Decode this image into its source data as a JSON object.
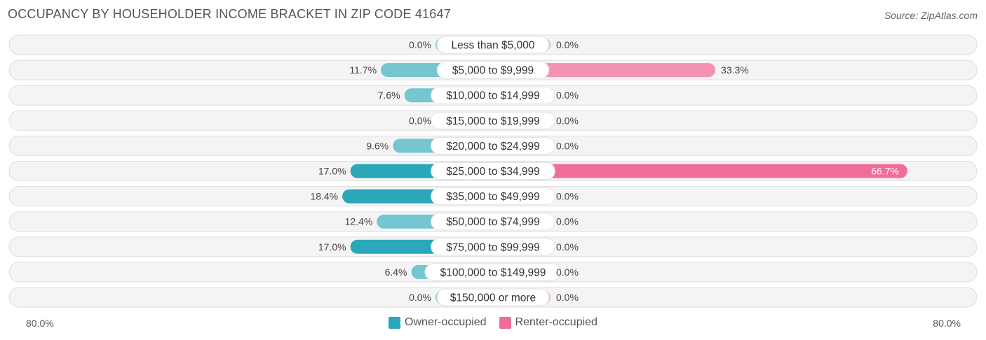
{
  "title": "OCCUPANCY BY HOUSEHOLDER INCOME BRACKET IN ZIP CODE 41647",
  "source": "Source: ZipAtlas.com",
  "axis": {
    "left_label": "80.0%",
    "right_label": "80.0%"
  },
  "legend": {
    "owner": {
      "label": "Owner-occupied",
      "color": "#2aa7b8"
    },
    "renter": {
      "label": "Renter-occupied",
      "color": "#f06d98"
    }
  },
  "chart_data": {
    "type": "bar",
    "orientation": "horizontal-diverging",
    "title": "OCCUPANCY BY HOUSEHOLDER INCOME BRACKET IN ZIP CODE 41647",
    "axis_range": [
      -80,
      80
    ],
    "categories": [
      "Less than $5,000",
      "$5,000 to $9,999",
      "$10,000 to $14,999",
      "$15,000 to $19,999",
      "$20,000 to $24,999",
      "$25,000 to $34,999",
      "$35,000 to $49,999",
      "$50,000 to $74,999",
      "$75,000 to $99,999",
      "$100,000 to $149,999",
      "$150,000 or more"
    ],
    "series": [
      {
        "name": "Owner-occupied",
        "values": [
          0.0,
          11.7,
          7.6,
          0.0,
          9.6,
          17.0,
          18.4,
          12.4,
          17.0,
          6.4,
          0.0
        ],
        "labels": [
          "0.0%",
          "11.7%",
          "7.6%",
          "0.0%",
          "9.6%",
          "17.0%",
          "18.4%",
          "12.4%",
          "17.0%",
          "6.4%",
          "0.0%"
        ]
      },
      {
        "name": "Renter-occupied",
        "values": [
          0.0,
          33.3,
          0.0,
          0.0,
          0.0,
          66.7,
          0.0,
          0.0,
          0.0,
          0.0,
          0.0
        ],
        "labels": [
          "0.0%",
          "33.3%",
          "0.0%",
          "0.0%",
          "0.0%",
          "66.7%",
          "0.0%",
          "0.0%",
          "0.0%",
          "0.0%",
          "0.0%"
        ]
      }
    ]
  }
}
